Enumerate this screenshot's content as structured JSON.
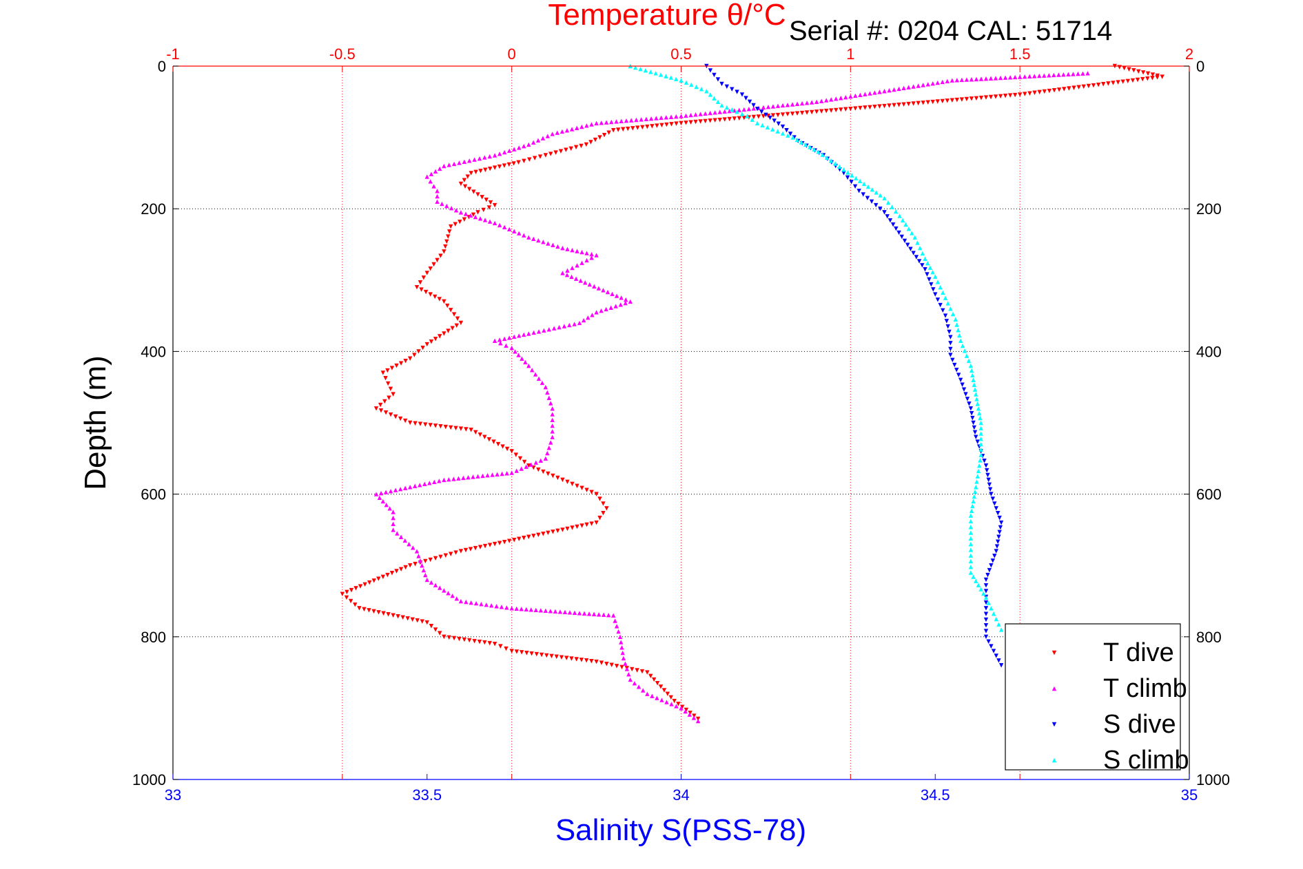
{
  "header": {
    "serial": "Serial #: 0204  CAL: 51714"
  },
  "colors": {
    "t_dive": "#ff0000",
    "t_climb": "#ff00ff",
    "s_dive": "#0000ff",
    "s_climb": "#00ffff",
    "top_axis": "#ff0000",
    "bottom_axis": "#0000ff",
    "frame": "#000000"
  },
  "chart_data": {
    "type": "scatter",
    "title": "Temperature θ/°C",
    "xlabel": "Salinity S(PSS-78)",
    "ylabel": "Depth (m)",
    "ylim": [
      1000,
      0
    ],
    "y_inverted": true,
    "x_bottom": {
      "label": "Salinity S(PSS-78)",
      "lim": [
        33,
        35
      ],
      "ticks": [
        "33",
        "33.5",
        "34",
        "34.5",
        "35"
      ]
    },
    "x_top": {
      "label": "Temperature θ/°C",
      "lim": [
        -1,
        2
      ],
      "ticks": [
        "-1",
        "-0.5",
        "0",
        "0.5",
        "1",
        "1.5",
        "2"
      ]
    },
    "y_ticks": [
      "0",
      "200",
      "400",
      "600",
      "800",
      "1000"
    ],
    "grid": "dotted",
    "legend": {
      "placement": "bottom-right",
      "entries": [
        "T dive",
        "T climb",
        "S dive",
        "S climb"
      ]
    },
    "series": [
      {
        "name": "T dive",
        "axis": "top",
        "marker": "triangle-down",
        "color": "#ff0000",
        "points": [
          [
            1.78,
            0
          ],
          [
            1.92,
            15
          ],
          [
            1.5,
            40
          ],
          [
            1.0,
            60
          ],
          [
            0.5,
            80
          ],
          [
            0.3,
            90
          ],
          [
            0.22,
            110
          ],
          [
            0.1,
            125
          ],
          [
            0.02,
            135
          ],
          [
            -0.12,
            150
          ],
          [
            -0.15,
            165
          ],
          [
            -0.1,
            180
          ],
          [
            -0.05,
            195
          ],
          [
            -0.1,
            205
          ],
          [
            -0.18,
            225
          ],
          [
            -0.2,
            260
          ],
          [
            -0.25,
            290
          ],
          [
            -0.28,
            310
          ],
          [
            -0.2,
            330
          ],
          [
            -0.15,
            360
          ],
          [
            -0.25,
            390
          ],
          [
            -0.3,
            410
          ],
          [
            -0.38,
            430
          ],
          [
            -0.35,
            460
          ],
          [
            -0.4,
            480
          ],
          [
            -0.3,
            500
          ],
          [
            -0.12,
            510
          ],
          [
            0.0,
            540
          ],
          [
            0.05,
            560
          ],
          [
            0.15,
            580
          ],
          [
            0.25,
            600
          ],
          [
            0.28,
            620
          ],
          [
            0.25,
            640
          ],
          [
            0.05,
            660
          ],
          [
            -0.15,
            680
          ],
          [
            -0.3,
            700
          ],
          [
            -0.5,
            740
          ],
          [
            -0.45,
            760
          ],
          [
            -0.25,
            780
          ],
          [
            -0.2,
            800
          ],
          [
            -0.05,
            810
          ],
          [
            0.0,
            820
          ],
          [
            0.25,
            835
          ],
          [
            0.4,
            850
          ],
          [
            0.48,
            890
          ],
          [
            0.55,
            915
          ]
        ]
      },
      {
        "name": "T climb",
        "axis": "top",
        "marker": "triangle-up",
        "color": "#ff00ff",
        "points": [
          [
            1.7,
            10
          ],
          [
            1.3,
            20
          ],
          [
            0.9,
            50
          ],
          [
            0.5,
            70
          ],
          [
            0.25,
            80
          ],
          [
            0.12,
            95
          ],
          [
            0.05,
            110
          ],
          [
            -0.05,
            125
          ],
          [
            -0.2,
            140
          ],
          [
            -0.25,
            155
          ],
          [
            -0.22,
            175
          ],
          [
            -0.22,
            190
          ],
          [
            -0.15,
            205
          ],
          [
            -0.05,
            220
          ],
          [
            0.05,
            240
          ],
          [
            0.15,
            255
          ],
          [
            0.25,
            265
          ],
          [
            0.15,
            290
          ],
          [
            0.35,
            330
          ],
          [
            0.25,
            345
          ],
          [
            0.2,
            360
          ],
          [
            0.05,
            375
          ],
          [
            -0.05,
            385
          ],
          [
            0.0,
            395
          ],
          [
            0.05,
            420
          ],
          [
            0.1,
            450
          ],
          [
            0.12,
            480
          ],
          [
            0.12,
            520
          ],
          [
            0.1,
            550
          ],
          [
            0.0,
            570
          ],
          [
            -0.2,
            580
          ],
          [
            -0.4,
            600
          ],
          [
            -0.35,
            625
          ],
          [
            -0.35,
            650
          ],
          [
            -0.28,
            680
          ],
          [
            -0.25,
            720
          ],
          [
            -0.15,
            750
          ],
          [
            0.0,
            760
          ],
          [
            0.3,
            770
          ],
          [
            0.32,
            800
          ],
          [
            0.33,
            830
          ],
          [
            0.35,
            860
          ],
          [
            0.4,
            880
          ],
          [
            0.5,
            900
          ],
          [
            0.55,
            918
          ]
        ]
      },
      {
        "name": "S dive",
        "axis": "bottom",
        "marker": "triangle-down",
        "color": "#0000ff",
        "points": [
          [
            34.05,
            0
          ],
          [
            34.08,
            25
          ],
          [
            34.12,
            40
          ],
          [
            34.15,
            60
          ],
          [
            34.2,
            85
          ],
          [
            34.23,
            105
          ],
          [
            34.28,
            125
          ],
          [
            34.32,
            150
          ],
          [
            34.35,
            175
          ],
          [
            34.4,
            205
          ],
          [
            34.44,
            245
          ],
          [
            34.48,
            285
          ],
          [
            34.5,
            320
          ],
          [
            34.52,
            350
          ],
          [
            34.53,
            380
          ],
          [
            34.53,
            405
          ],
          [
            34.55,
            440
          ],
          [
            34.57,
            480
          ],
          [
            34.58,
            520
          ],
          [
            34.6,
            560
          ],
          [
            34.61,
            600
          ],
          [
            34.63,
            640
          ],
          [
            34.62,
            680
          ],
          [
            34.6,
            720
          ],
          [
            34.6,
            760
          ],
          [
            34.6,
            800
          ],
          [
            34.63,
            840
          ]
        ]
      },
      {
        "name": "S climb",
        "axis": "bottom",
        "marker": "triangle-up",
        "color": "#00ffff",
        "points": [
          [
            33.9,
            0
          ],
          [
            33.95,
            10
          ],
          [
            34.0,
            20
          ],
          [
            34.05,
            35
          ],
          [
            34.08,
            55
          ],
          [
            34.13,
            70
          ],
          [
            34.15,
            80
          ],
          [
            34.22,
            100
          ],
          [
            34.27,
            120
          ],
          [
            34.32,
            145
          ],
          [
            34.36,
            165
          ],
          [
            34.4,
            185
          ],
          [
            34.43,
            210
          ],
          [
            34.46,
            240
          ],
          [
            34.48,
            270
          ],
          [
            34.5,
            295
          ],
          [
            34.52,
            325
          ],
          [
            34.54,
            355
          ],
          [
            34.55,
            385
          ],
          [
            34.57,
            420
          ],
          [
            34.58,
            460
          ],
          [
            34.59,
            500
          ],
          [
            34.59,
            545
          ],
          [
            34.58,
            590
          ],
          [
            34.57,
            630
          ],
          [
            34.57,
            670
          ],
          [
            34.57,
            710
          ],
          [
            34.6,
            745
          ],
          [
            34.62,
            775
          ],
          [
            34.63,
            790
          ]
        ]
      }
    ]
  }
}
